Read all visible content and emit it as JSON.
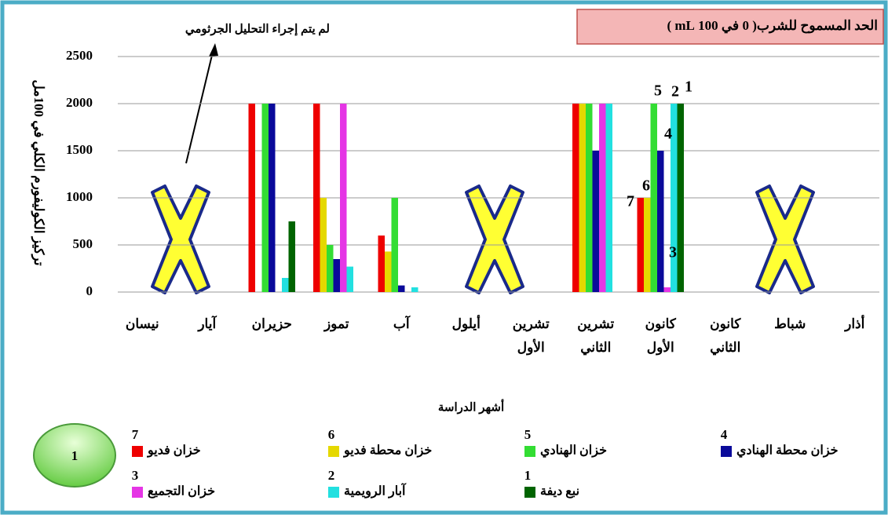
{
  "chart_data": {
    "type": "bar",
    "title": "الحد المسموح للشرب( 0 في 100 mL )",
    "annotation": "لم يتم إجراء التحليل الجرثومي",
    "y_label": "تركيز الكوليفورم الكلي في 100مل",
    "x_label": "أشهر الدراسة",
    "badge": "1",
    "categories": [
      "نيسان",
      "آيار",
      "حزيران",
      "تموز",
      "آب",
      "أيلول",
      "تشرين الأول",
      "تشرين الثاني",
      "كانون الأول",
      "كانون الثاني",
      "شباط",
      "أذار"
    ],
    "series": [
      {
        "name": "خزان فديو",
        "label": "7",
        "color": "#ee0000",
        "values": [
          null,
          null,
          2000,
          2000,
          600,
          null,
          null,
          2000,
          1000,
          null,
          null,
          null
        ]
      },
      {
        "name": "خزان محطة فديو",
        "label": "6",
        "color": "#e5d800",
        "values": [
          null,
          null,
          null,
          1000,
          430,
          null,
          null,
          2000,
          1000,
          null,
          null,
          null
        ]
      },
      {
        "name": "خزان الهنادي",
        "label": "5",
        "color": "#33dd33",
        "values": [
          null,
          null,
          2000,
          500,
          1000,
          null,
          null,
          2000,
          2000,
          null,
          null,
          null
        ]
      },
      {
        "name": "خزان محطة الهنادي",
        "label": "4",
        "color": "#0a0a9a",
        "values": [
          null,
          null,
          2000,
          350,
          70,
          null,
          null,
          1500,
          1500,
          null,
          null,
          null
        ]
      },
      {
        "name": "خزان التجميع",
        "label": "3",
        "color": "#e535e5",
        "values": [
          null,
          null,
          null,
          2000,
          null,
          null,
          null,
          2000,
          50,
          null,
          null,
          null
        ]
      },
      {
        "name": "آبار الرويمية",
        "label": "2",
        "color": "#22e0e0",
        "values": [
          null,
          null,
          150,
          270,
          50,
          null,
          null,
          2000,
          2000,
          null,
          null,
          null
        ]
      },
      {
        "name": "نبع ديفة",
        "label": "1",
        "color": "#006400",
        "values": [
          null,
          null,
          750,
          null,
          null,
          null,
          null,
          null,
          2000,
          null,
          null,
          null
        ]
      }
    ],
    "ylim": [
      0,
      2500
    ],
    "yticks": [
      0,
      500,
      1000,
      1500,
      2000,
      2500
    ],
    "grid": true
  }
}
